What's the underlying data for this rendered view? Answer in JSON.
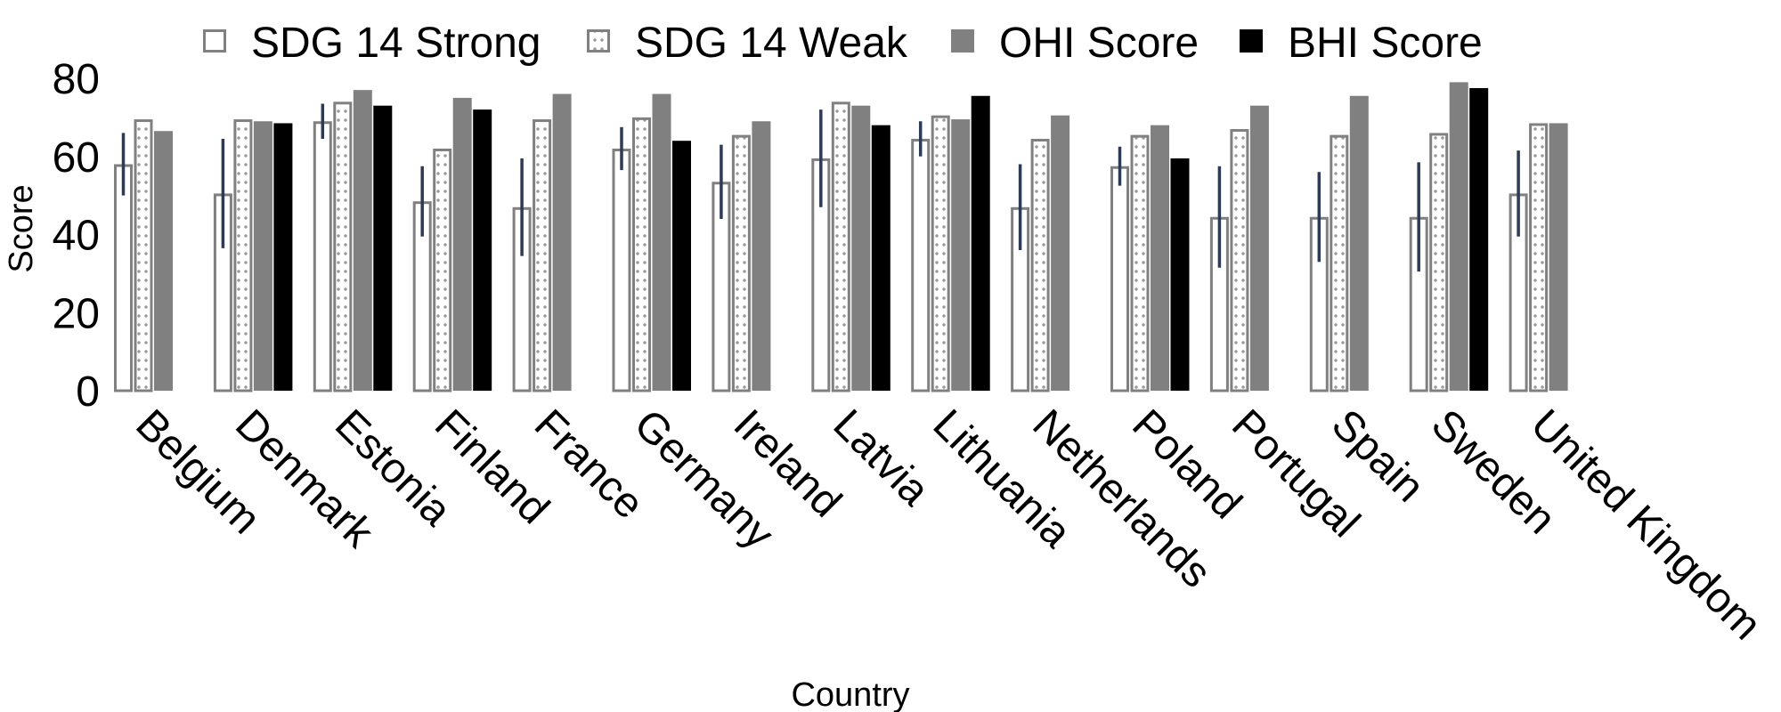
{
  "chart_data": {
    "type": "bar",
    "title": "",
    "xlabel": "Country",
    "ylabel": "Score",
    "ylim": [
      0,
      80
    ],
    "yticks": [
      0,
      20,
      40,
      60,
      80
    ],
    "grid": false,
    "legend_position": "top",
    "categories": [
      "Belgium",
      "Denmark",
      "Estonia",
      "Finland",
      "France",
      "Germany",
      "Ireland",
      "Latvia",
      "Lithuania",
      "Netherlands",
      "Poland",
      "Portugal",
      "Spain",
      "Sweden",
      "United Kingdom"
    ],
    "series": [
      {
        "name": "SDG 14 Strong",
        "style": "outline",
        "color": "#808080",
        "values": [
          58,
          50.5,
          69,
          48.5,
          47,
          62,
          53.5,
          59.5,
          64.5,
          47,
          57.5,
          44.5,
          44.5,
          44.5,
          50.5
        ],
        "error": [
          8,
          14,
          4.5,
          9,
          12.5,
          5.5,
          9.5,
          12.5,
          4.5,
          11,
          5,
          13,
          11.5,
          14,
          11
        ]
      },
      {
        "name": "SDG 14 Weak",
        "style": "dotted",
        "color": "#808080",
        "values": [
          69.5,
          69.5,
          74,
          62,
          69.5,
          70,
          65.5,
          74,
          70.5,
          64.5,
          65.5,
          67,
          65.5,
          66,
          68.5
        ]
      },
      {
        "name": "OHI Score",
        "style": "solid",
        "color": "#808080",
        "values": [
          66.5,
          69,
          77,
          75,
          76,
          76,
          69,
          73,
          69.5,
          70.5,
          68,
          73,
          75.5,
          79,
          68.5
        ]
      },
      {
        "name": "BHI Score",
        "style": "solid",
        "color": "#000000",
        "values": [
          null,
          68.5,
          73,
          72,
          null,
          64,
          null,
          68,
          75.5,
          null,
          59.5,
          null,
          null,
          77.5,
          null
        ]
      }
    ],
    "error_bar_color": "#2e3a5a"
  }
}
